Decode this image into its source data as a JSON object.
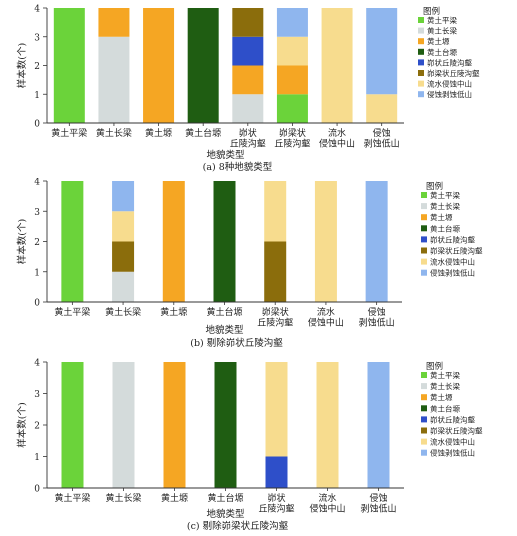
{
  "colors": {
    "黄土平梁": "#6bd33a",
    "黄土长梁": "#d4dbdb",
    "黄土塬": "#f5a623",
    "黄土台塬": "#1f5d12",
    "峁状丘陵沟壑": "#2e4fc9",
    "峁梁状丘陵沟壑": "#8b6d0c",
    "流水侵蚀中山": "#f7dc8e",
    "侵蚀剥蚀低山": "#8fb6ee"
  },
  "chart_data": [
    {
      "type": "bar",
      "stacked": true,
      "caption": "(a) 8种地貌类型",
      "xlabel": "地貌类型",
      "ylabel": "样本数(个)",
      "ylim": [
        0,
        4
      ],
      "yticks": [
        "0",
        "1",
        "2",
        "3",
        "4"
      ],
      "categories": [
        "黄土平梁",
        "黄土长梁",
        "黄土塬",
        "黄土台塬",
        "峁状\n丘陵沟壑",
        "峁梁状\n丘陵沟壑",
        "流水\n侵蚀中山",
        "侵蚀\n剥蚀低山"
      ],
      "legend_title": "图例",
      "legend": [
        "黄土平梁",
        "黄土长梁",
        "黄土塬",
        "黄土台塬",
        "峁状丘陵沟壑",
        "峁梁状丘陵沟壑",
        "流水侵蚀中山",
        "侵蚀剥蚀低山"
      ],
      "stacks": [
        [
          {
            "class": "黄土平梁",
            "value": 4
          }
        ],
        [
          {
            "class": "黄土长梁",
            "value": 3
          },
          {
            "class": "黄土塬",
            "value": 1
          }
        ],
        [
          {
            "class": "黄土塬",
            "value": 4
          }
        ],
        [
          {
            "class": "黄土台塬",
            "value": 4
          }
        ],
        [
          {
            "class": "黄土长梁",
            "value": 1
          },
          {
            "class": "黄土塬",
            "value": 1
          },
          {
            "class": "峁状丘陵沟壑",
            "value": 1
          },
          {
            "class": "峁梁状丘陵沟壑",
            "value": 1
          }
        ],
        [
          {
            "class": "黄土平梁",
            "value": 1
          },
          {
            "class": "黄土塬",
            "value": 1
          },
          {
            "class": "流水侵蚀中山",
            "value": 1
          },
          {
            "class": "侵蚀剥蚀低山",
            "value": 1
          }
        ],
        [
          {
            "class": "流水侵蚀中山",
            "value": 4
          }
        ],
        [
          {
            "class": "流水侵蚀中山",
            "value": 1
          },
          {
            "class": "侵蚀剥蚀低山",
            "value": 3
          }
        ]
      ]
    },
    {
      "type": "bar",
      "stacked": true,
      "caption": "(b) 剔除峁状丘陵沟壑",
      "xlabel": "地貌类型",
      "ylabel": "样本数(个)",
      "ylim": [
        0,
        4
      ],
      "yticks": [
        "0",
        "1",
        "2",
        "3",
        "4"
      ],
      "categories": [
        "黄土平梁",
        "黄土长梁",
        "黄土塬",
        "黄土台塬",
        "峁梁状\n丘陵沟壑",
        "流水\n侵蚀中山",
        "侵蚀\n剥蚀低山"
      ],
      "legend_title": "图例",
      "legend": [
        "黄土平梁",
        "黄土长梁",
        "黄土塬",
        "黄土台塬",
        "峁状丘陵沟壑",
        "峁梁状丘陵沟壑",
        "流水侵蚀中山",
        "侵蚀剥蚀低山"
      ],
      "stacks": [
        [
          {
            "class": "黄土平梁",
            "value": 4
          }
        ],
        [
          {
            "class": "黄土长梁",
            "value": 1
          },
          {
            "class": "峁梁状丘陵沟壑",
            "value": 1
          },
          {
            "class": "流水侵蚀中山",
            "value": 1
          },
          {
            "class": "侵蚀剥蚀低山",
            "value": 1
          }
        ],
        [
          {
            "class": "黄土塬",
            "value": 4
          }
        ],
        [
          {
            "class": "黄土台塬",
            "value": 4
          }
        ],
        [
          {
            "class": "峁梁状丘陵沟壑",
            "value": 2
          },
          {
            "class": "流水侵蚀中山",
            "value": 2
          }
        ],
        [
          {
            "class": "流水侵蚀中山",
            "value": 4
          }
        ],
        [
          {
            "class": "侵蚀剥蚀低山",
            "value": 4
          }
        ]
      ]
    },
    {
      "type": "bar",
      "stacked": true,
      "caption": "(c) 剔除峁梁状丘陵沟壑",
      "xlabel": "地貌类型",
      "ylabel": "样本数(个)",
      "ylim": [
        0,
        4
      ],
      "yticks": [
        "0",
        "1",
        "2",
        "3",
        "4"
      ],
      "categories": [
        "黄土平梁",
        "黄土长梁",
        "黄土塬",
        "黄土台塬",
        "峁状\n丘陵沟壑",
        "流水\n侵蚀中山",
        "侵蚀\n剥蚀低山"
      ],
      "legend_title": "图例",
      "legend": [
        "黄土平梁",
        "黄土长梁",
        "黄土塬",
        "黄土台塬",
        "峁状丘陵沟壑",
        "峁梁状丘陵沟壑",
        "流水侵蚀中山",
        "侵蚀剥蚀低山"
      ],
      "stacks": [
        [
          {
            "class": "黄土平梁",
            "value": 4
          }
        ],
        [
          {
            "class": "黄土长梁",
            "value": 4
          }
        ],
        [
          {
            "class": "黄土塬",
            "value": 4
          }
        ],
        [
          {
            "class": "黄土台塬",
            "value": 4
          }
        ],
        [
          {
            "class": "峁状丘陵沟壑",
            "value": 1
          },
          {
            "class": "流水侵蚀中山",
            "value": 3
          }
        ],
        [
          {
            "class": "流水侵蚀中山",
            "value": 4
          }
        ],
        [
          {
            "class": "侵蚀剥蚀低山",
            "value": 4
          }
        ]
      ]
    }
  ]
}
